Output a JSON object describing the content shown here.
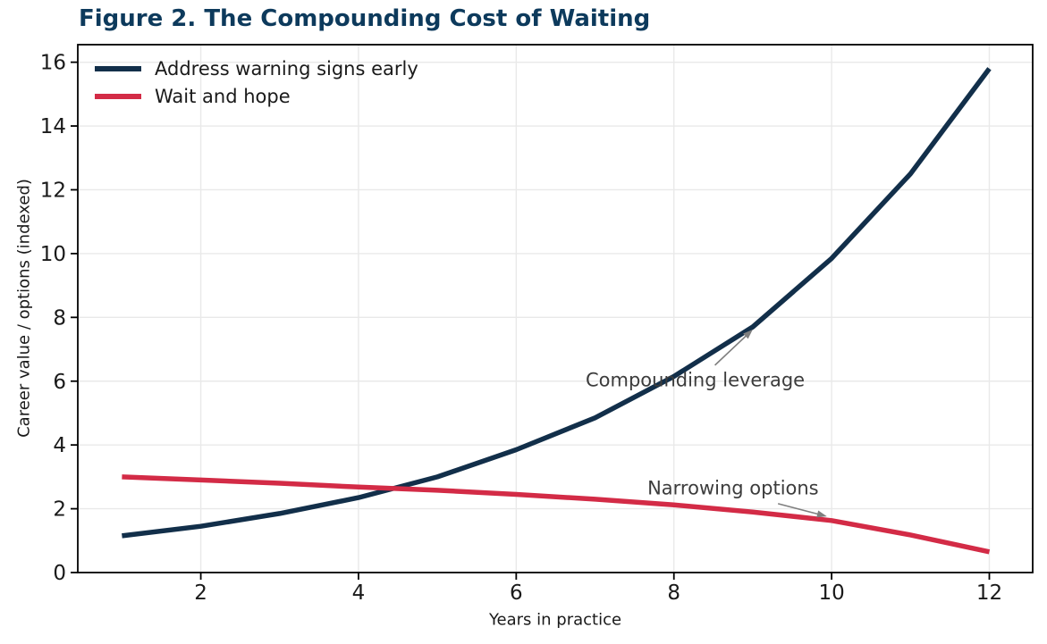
{
  "chart_data": {
    "type": "line",
    "title": "Figure 2. The Compounding Cost of Waiting",
    "xlabel": "Years in practice",
    "ylabel": "Career value / options (indexed)",
    "x": [
      1,
      2,
      3,
      4,
      5,
      6,
      7,
      8,
      9,
      10,
      11,
      12
    ],
    "series": [
      {
        "name": "Address warning signs early",
        "color": "#122f4a",
        "values": [
          1.15,
          1.45,
          1.85,
          2.35,
          3.0,
          3.85,
          4.85,
          6.15,
          7.7,
          9.85,
          12.5,
          15.8
        ]
      },
      {
        "name": "Wait and hope",
        "color": "#d32b46",
        "values": [
          3.0,
          2.9,
          2.8,
          2.68,
          2.58,
          2.45,
          2.3,
          2.12,
          1.9,
          1.63,
          1.18,
          0.65
        ]
      }
    ],
    "xlim": [
      0.44,
      12.55
    ],
    "ylim": [
      0,
      16.55
    ],
    "x_ticks": [
      2,
      4,
      6,
      8,
      10,
      12
    ],
    "y_ticks": [
      0,
      2,
      4,
      6,
      8,
      10,
      12,
      14,
      16
    ],
    "grid": true,
    "legend_position": "upper-left",
    "annotations": [
      {
        "label": "Compounding leverage",
        "text_x": 8.27,
        "text_y": 6.05,
        "arrow_tail_x": 8.52,
        "arrow_tail_y": 6.5,
        "arrow_tip_x": 9.0,
        "arrow_tip_y": 7.62
      },
      {
        "label": "Narrowing options",
        "text_x": 8.75,
        "text_y": 2.66,
        "arrow_tail_x": 9.32,
        "arrow_tail_y": 2.16,
        "arrow_tip_x": 9.94,
        "arrow_tip_y": 1.76
      }
    ],
    "colors": {
      "title": "#0d3a5c",
      "text": "#1a1a1a",
      "grid": "#e9e9e9",
      "spine": "#000000",
      "annotation_text": "#3c3c3c",
      "annotation_arrow": "#7f7f7f",
      "background": "#ffffff"
    }
  }
}
